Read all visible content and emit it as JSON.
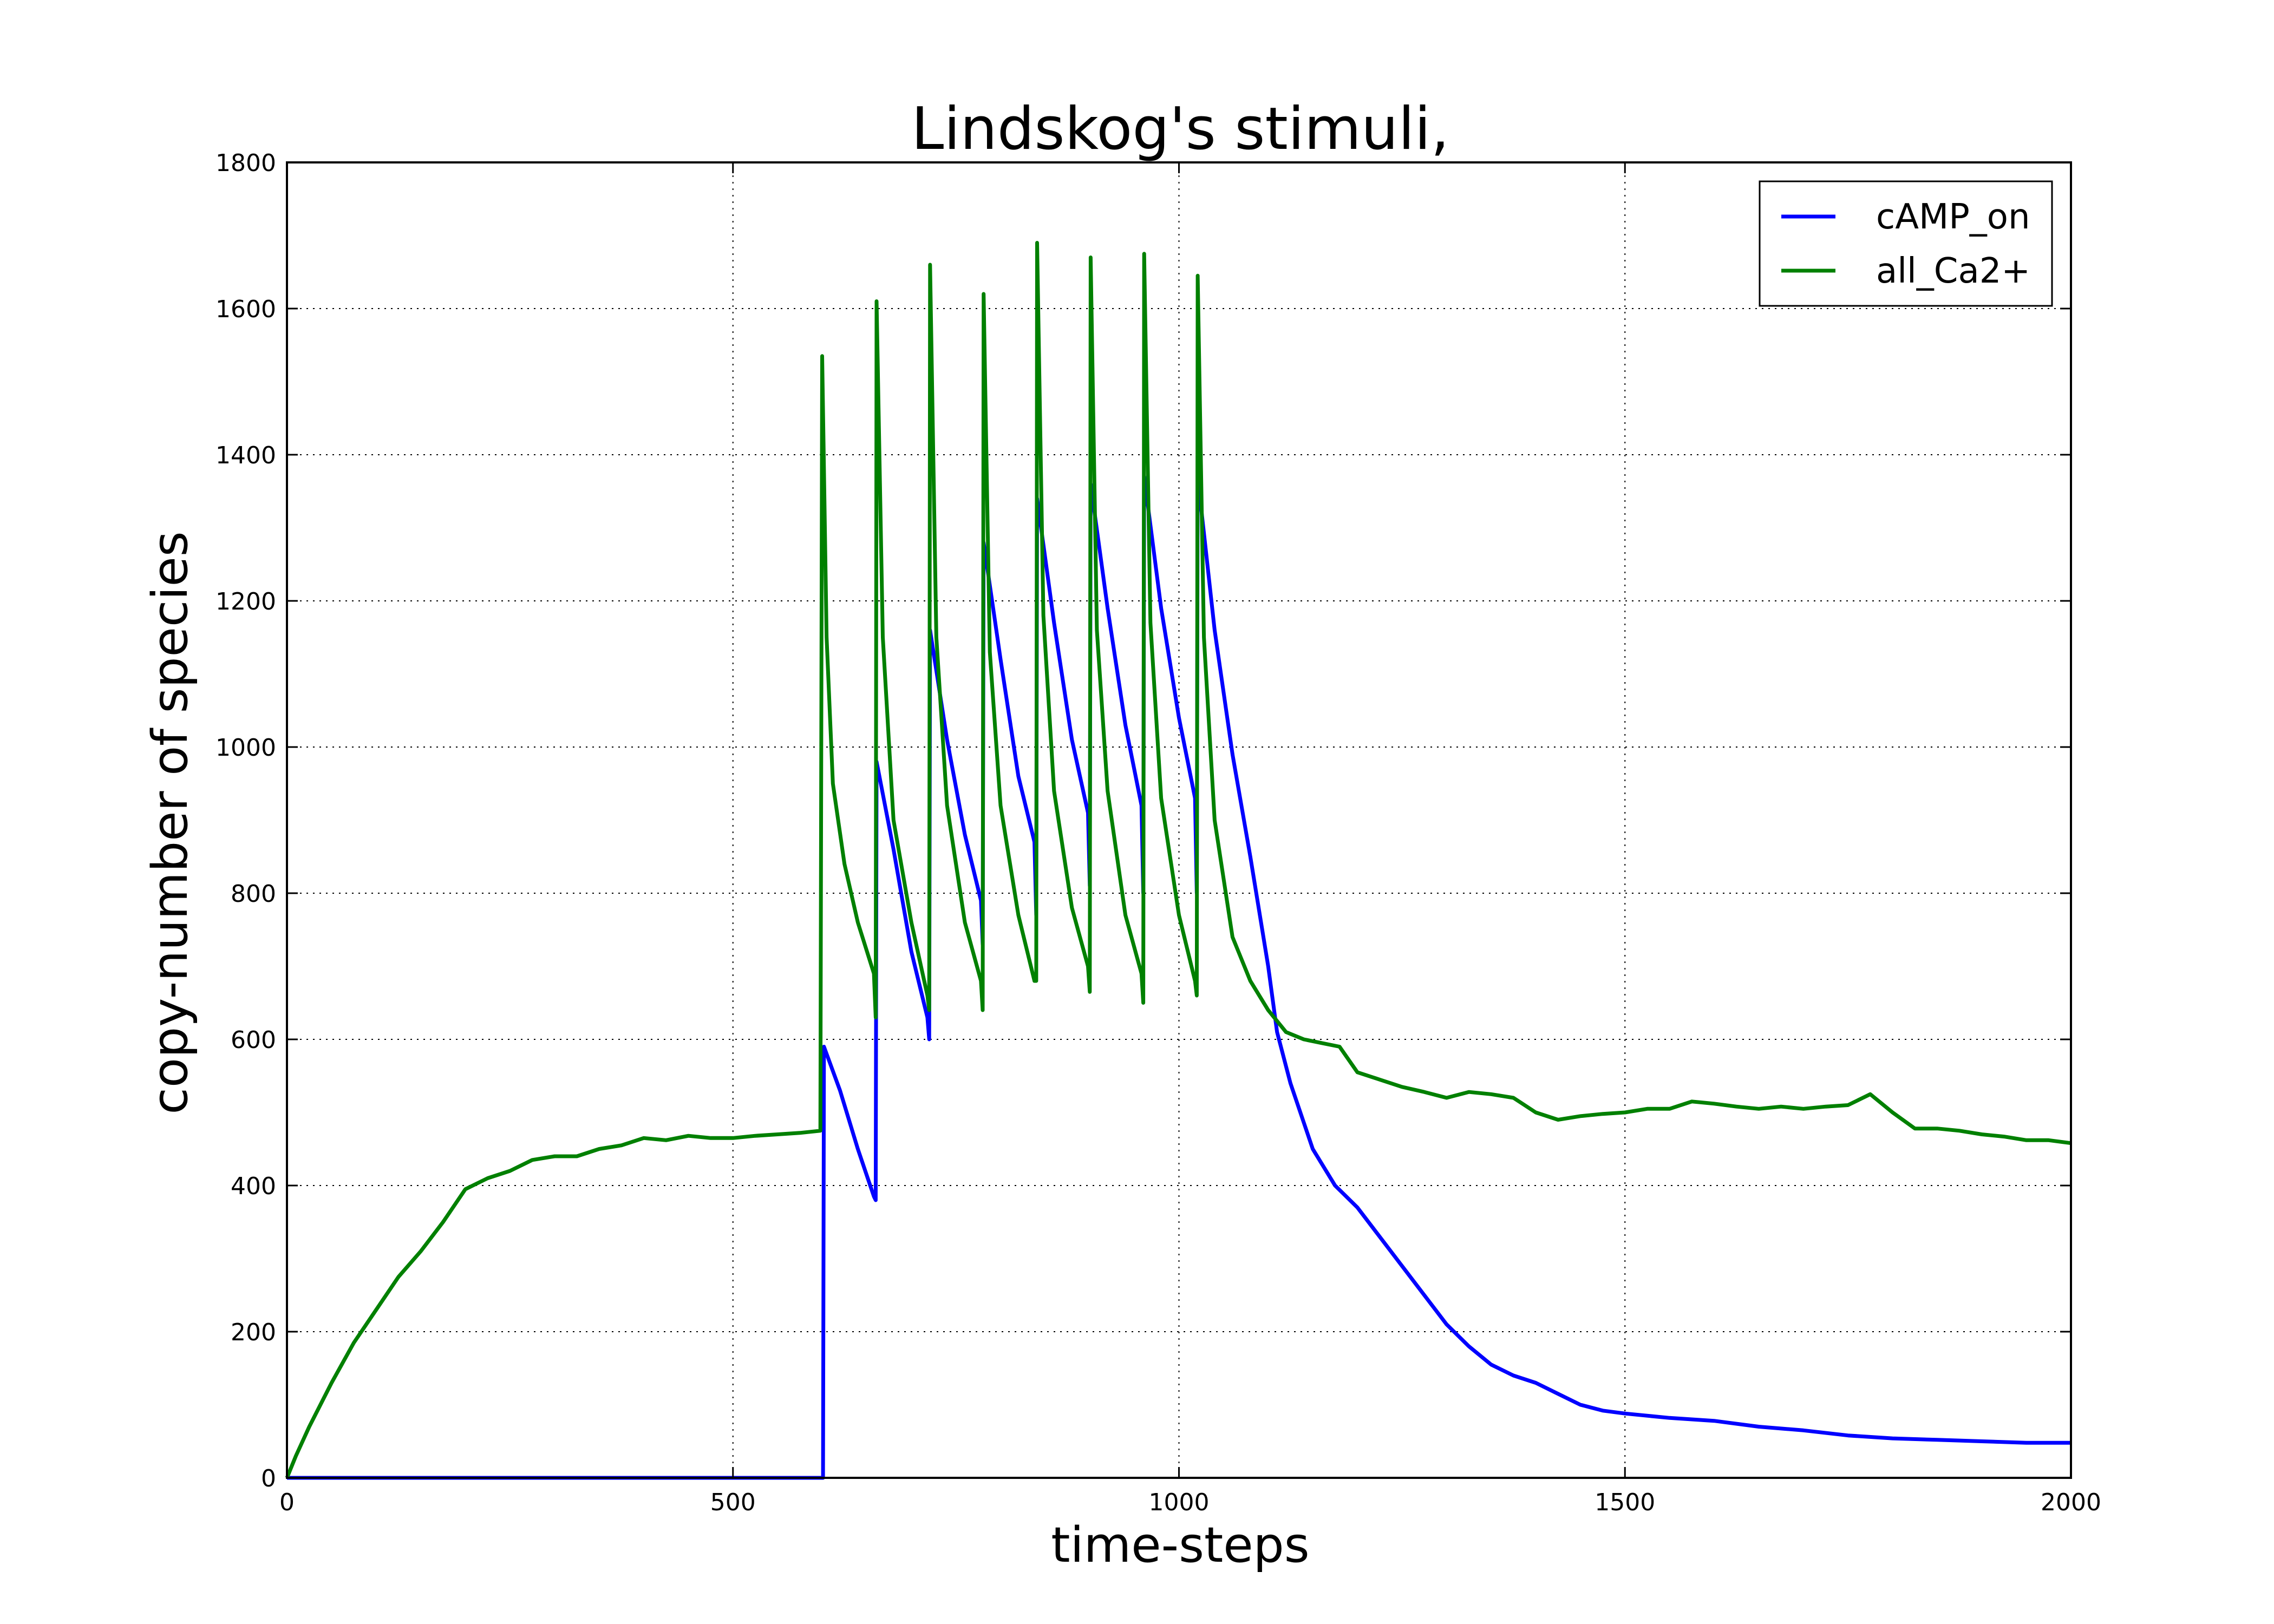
{
  "chart_data": {
    "type": "line",
    "title": "Lindskog's stimuli,",
    "xlabel": "time-steps",
    "ylabel": "copy-number of species",
    "xlim": [
      0,
      2000
    ],
    "ylim": [
      0,
      1800
    ],
    "xticks": [
      0,
      500,
      1000,
      1500,
      2000
    ],
    "yticks": [
      0,
      200,
      400,
      600,
      800,
      1000,
      1200,
      1400,
      1600,
      1800
    ],
    "grid": true,
    "legend_position": "top-right",
    "series": [
      {
        "name": "cAMP_on",
        "color": "#0000ff",
        "points": [
          [
            0,
            0
          ],
          [
            600,
            0
          ],
          [
            601,
            0
          ],
          [
            602,
            590
          ],
          [
            620,
            530
          ],
          [
            640,
            450
          ],
          [
            658,
            385
          ],
          [
            660,
            380
          ],
          [
            661,
            980
          ],
          [
            680,
            860
          ],
          [
            700,
            720
          ],
          [
            718,
            630
          ],
          [
            720,
            600
          ],
          [
            721,
            1160
          ],
          [
            740,
            1010
          ],
          [
            760,
            880
          ],
          [
            778,
            790
          ],
          [
            780,
            730
          ],
          [
            781,
            1280
          ],
          [
            800,
            1120
          ],
          [
            820,
            960
          ],
          [
            838,
            870
          ],
          [
            840,
            770
          ],
          [
            841,
            1340
          ],
          [
            860,
            1170
          ],
          [
            880,
            1010
          ],
          [
            898,
            910
          ],
          [
            900,
            810
          ],
          [
            901,
            1360
          ],
          [
            920,
            1190
          ],
          [
            940,
            1030
          ],
          [
            958,
            920
          ],
          [
            960,
            800
          ],
          [
            961,
            1370
          ],
          [
            980,
            1190
          ],
          [
            1000,
            1040
          ],
          [
            1018,
            930
          ],
          [
            1020,
            800
          ],
          [
            1021,
            1370
          ],
          [
            1040,
            1160
          ],
          [
            1060,
            990
          ],
          [
            1080,
            850
          ],
          [
            1100,
            700
          ],
          [
            1110,
            610
          ],
          [
            1125,
            540
          ],
          [
            1150,
            450
          ],
          [
            1175,
            400
          ],
          [
            1200,
            370
          ],
          [
            1225,
            330
          ],
          [
            1250,
            290
          ],
          [
            1275,
            250
          ],
          [
            1300,
            210
          ],
          [
            1325,
            180
          ],
          [
            1350,
            155
          ],
          [
            1375,
            140
          ],
          [
            1400,
            130
          ],
          [
            1425,
            115
          ],
          [
            1450,
            100
          ],
          [
            1475,
            92
          ],
          [
            1500,
            88
          ],
          [
            1550,
            82
          ],
          [
            1600,
            78
          ],
          [
            1650,
            70
          ],
          [
            1700,
            65
          ],
          [
            1750,
            58
          ],
          [
            1800,
            54
          ],
          [
            1850,
            52
          ],
          [
            1900,
            50
          ],
          [
            1950,
            48
          ],
          [
            2000,
            48
          ]
        ]
      },
      {
        "name": "all_Ca2+",
        "color": "#008000",
        "points": [
          [
            0,
            0
          ],
          [
            10,
            30
          ],
          [
            25,
            70
          ],
          [
            50,
            130
          ],
          [
            75,
            185
          ],
          [
            100,
            230
          ],
          [
            125,
            275
          ],
          [
            150,
            310
          ],
          [
            175,
            350
          ],
          [
            200,
            395
          ],
          [
            225,
            410
          ],
          [
            250,
            420
          ],
          [
            275,
            435
          ],
          [
            300,
            440
          ],
          [
            325,
            440
          ],
          [
            350,
            450
          ],
          [
            375,
            455
          ],
          [
            400,
            465
          ],
          [
            425,
            462
          ],
          [
            450,
            468
          ],
          [
            475,
            465
          ],
          [
            500,
            465
          ],
          [
            525,
            468
          ],
          [
            550,
            470
          ],
          [
            575,
            472
          ],
          [
            598,
            475
          ],
          [
            600,
            1535
          ],
          [
            605,
            1150
          ],
          [
            612,
            950
          ],
          [
            625,
            840
          ],
          [
            640,
            760
          ],
          [
            658,
            690
          ],
          [
            660,
            630
          ],
          [
            661,
            1610
          ],
          [
            668,
            1150
          ],
          [
            680,
            900
          ],
          [
            700,
            760
          ],
          [
            718,
            660
          ],
          [
            720,
            640
          ],
          [
            721,
            1660
          ],
          [
            728,
            1150
          ],
          [
            740,
            920
          ],
          [
            760,
            760
          ],
          [
            778,
            680
          ],
          [
            780,
            640
          ],
          [
            781,
            1620
          ],
          [
            788,
            1130
          ],
          [
            800,
            920
          ],
          [
            820,
            770
          ],
          [
            838,
            680
          ],
          [
            840,
            680
          ],
          [
            841,
            1690
          ],
          [
            848,
            1180
          ],
          [
            860,
            940
          ],
          [
            880,
            780
          ],
          [
            898,
            700
          ],
          [
            900,
            665
          ],
          [
            901,
            1670
          ],
          [
            908,
            1160
          ],
          [
            920,
            940
          ],
          [
            940,
            770
          ],
          [
            958,
            690
          ],
          [
            960,
            650
          ],
          [
            961,
            1675
          ],
          [
            968,
            1170
          ],
          [
            980,
            930
          ],
          [
            1000,
            770
          ],
          [
            1018,
            680
          ],
          [
            1020,
            660
          ],
          [
            1021,
            1645
          ],
          [
            1028,
            1150
          ],
          [
            1040,
            900
          ],
          [
            1060,
            740
          ],
          [
            1080,
            680
          ],
          [
            1100,
            640
          ],
          [
            1120,
            610
          ],
          [
            1140,
            600
          ],
          [
            1160,
            595
          ],
          [
            1180,
            590
          ],
          [
            1200,
            555
          ],
          [
            1225,
            545
          ],
          [
            1250,
            535
          ],
          [
            1275,
            528
          ],
          [
            1300,
            520
          ],
          [
            1325,
            528
          ],
          [
            1350,
            525
          ],
          [
            1375,
            520
          ],
          [
            1400,
            500
          ],
          [
            1425,
            490
          ],
          [
            1450,
            495
          ],
          [
            1475,
            498
          ],
          [
            1500,
            500
          ],
          [
            1525,
            505
          ],
          [
            1550,
            505
          ],
          [
            1575,
            515
          ],
          [
            1600,
            512
          ],
          [
            1625,
            508
          ],
          [
            1650,
            505
          ],
          [
            1675,
            508
          ],
          [
            1700,
            505
          ],
          [
            1725,
            508
          ],
          [
            1750,
            510
          ],
          [
            1775,
            525
          ],
          [
            1800,
            500
          ],
          [
            1825,
            478
          ],
          [
            1850,
            478
          ],
          [
            1875,
            475
          ],
          [
            1900,
            470
          ],
          [
            1925,
            467
          ],
          [
            1950,
            462
          ],
          [
            1975,
            462
          ],
          [
            2000,
            458
          ]
        ]
      }
    ]
  }
}
